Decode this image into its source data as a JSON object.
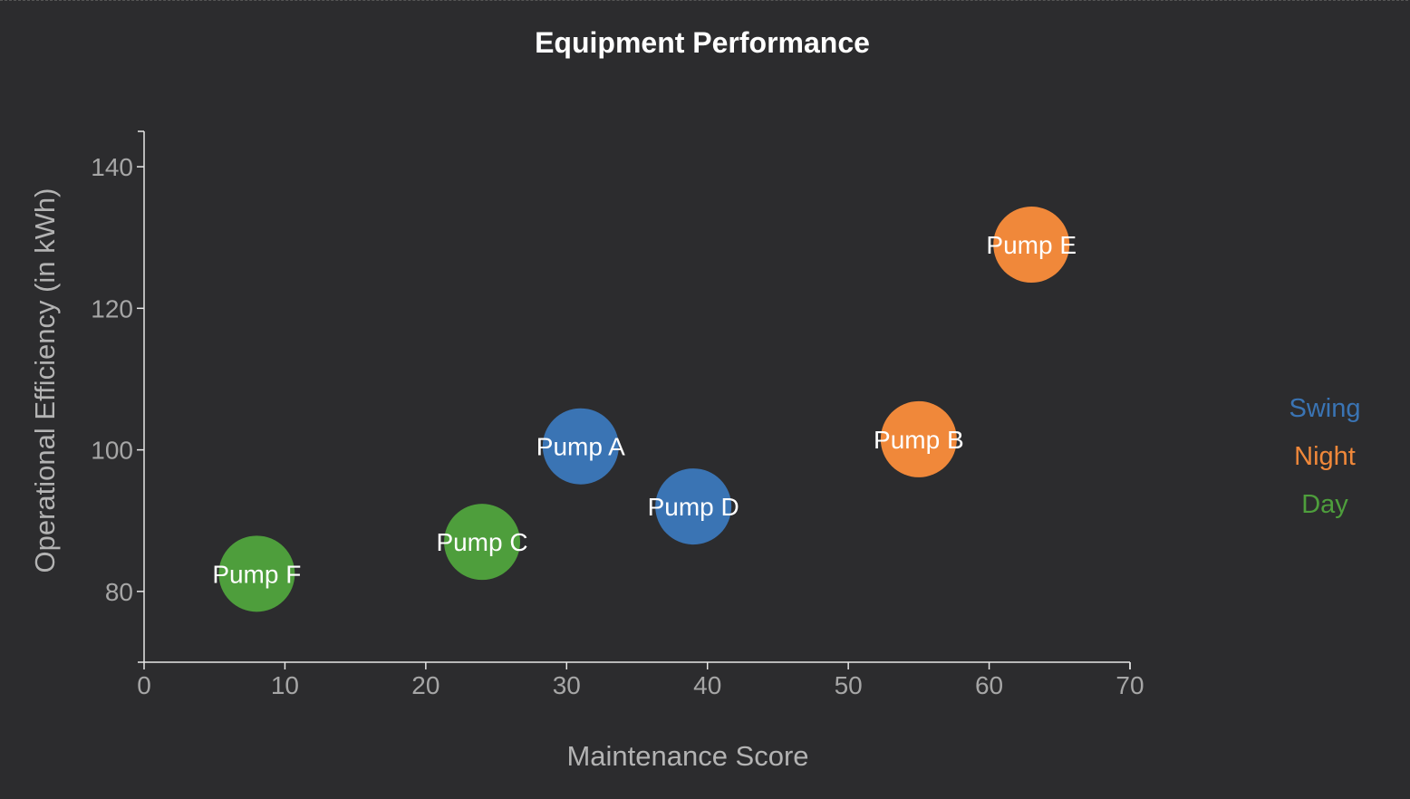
{
  "chart_data": {
    "type": "scatter",
    "title": "Equipment Performance",
    "xlabel": "Maintenance Score",
    "ylabel": "Operational Efficiency (in kWh)",
    "xlim": [
      0,
      70
    ],
    "ylim": [
      70,
      145
    ],
    "xticks": [
      0,
      10,
      20,
      30,
      40,
      50,
      60,
      70
    ],
    "yticks": [
      80,
      100,
      120,
      140
    ],
    "grid": false,
    "legend_position": "right",
    "groups": [
      {
        "name": "Swing",
        "color": "#3a74b4"
      },
      {
        "name": "Night",
        "color": "#f0883a"
      },
      {
        "name": "Day",
        "color": "#4e9e3c"
      }
    ],
    "points": [
      {
        "label": "Pump A",
        "x": 31,
        "y": 100.5,
        "group": "Swing"
      },
      {
        "label": "Pump B",
        "x": 55,
        "y": 101.5,
        "group": "Night"
      },
      {
        "label": "Pump C",
        "x": 24,
        "y": 87,
        "group": "Day"
      },
      {
        "label": "Pump D",
        "x": 39,
        "y": 92,
        "group": "Swing"
      },
      {
        "label": "Pump E",
        "x": 63,
        "y": 129,
        "group": "Night"
      },
      {
        "label": "Pump F",
        "x": 8,
        "y": 82.5,
        "group": "Day"
      }
    ]
  }
}
